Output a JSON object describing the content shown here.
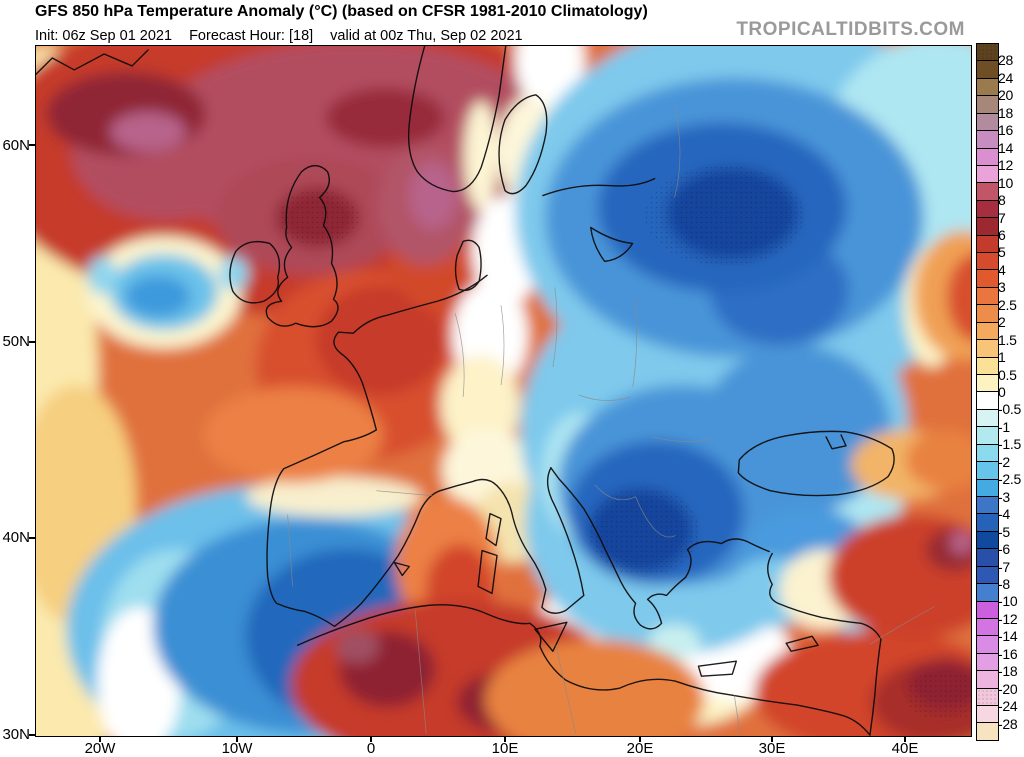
{
  "header": {
    "title": "GFS 850 hPa Temperature Anomaly (°C) (based on CFSR 1981-2010 Climatology)",
    "init": "Init: 06z Sep 01 2021",
    "forecast_hour": "Forecast Hour: [18]",
    "valid": "valid at 00z Thu, Sep 02 2021",
    "watermark": "TROPICALTIDBITS.COM"
  },
  "map": {
    "lat_labels": [
      "60N",
      "50N",
      "40N",
      "30N"
    ],
    "lon_labels": [
      "20W",
      "10W",
      "0",
      "10E",
      "20E",
      "30E",
      "40E"
    ]
  },
  "colorbar": {
    "labels": [
      "28",
      "24",
      "20",
      "18",
      "16",
      "14",
      "12",
      "10",
      "8",
      "7",
      "6",
      "5",
      "4",
      "3",
      "2.5",
      "2",
      "1.5",
      "1",
      "0.5",
      "0",
      "-0.5",
      "-1",
      "-1.5",
      "-2",
      "-2.5",
      "-3",
      "-4",
      "-5",
      "-6",
      "-7",
      "-8",
      "-10",
      "-12",
      "-14",
      "-16",
      "-18",
      "-20",
      "-24",
      "-28"
    ],
    "segment_colors": [
      "#5c421f",
      "#6f4e26",
      "#9b7a4e",
      "#a8877b",
      "#b28b9e",
      "#c78cc0",
      "#dc8fd0",
      "#e9a3d8",
      "#c25669",
      "#a62e3e",
      "#9c2830",
      "#c23b2b",
      "#d64b2e",
      "#e0592f",
      "#e8763e",
      "#ee8d4a",
      "#f4a95e",
      "#f8c478",
      "#fbe097",
      "#fdf3c2",
      "#ffffff",
      "#d8f4f2",
      "#b2e9ef",
      "#8bdaee",
      "#66c5ea",
      "#44aae2",
      "#3b77c6",
      "#2563b8",
      "#0f4a9e",
      "#2950a8",
      "#2d59b4",
      "#447fd0",
      "#cb5fde",
      "#d275e2",
      "#da8be6",
      "#e29fe4",
      "#ecb4de",
      "#f2c6dc",
      "#f6d7e2",
      "#f8e3c0"
    ],
    "stipple_segment_indexes": [
      0,
      37
    ]
  }
}
